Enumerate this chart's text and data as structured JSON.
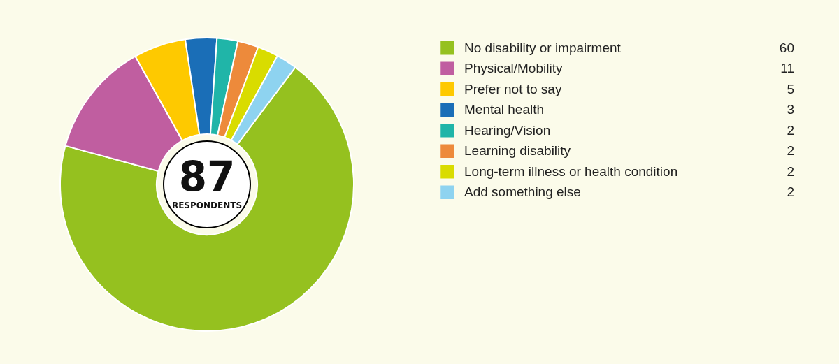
{
  "chart_data": {
    "type": "donut",
    "categories": [
      "No disability or impairment",
      "Physical/Mobility",
      "Prefer not to say",
      "Mental health",
      "Hearing/Vision",
      "Learning disability",
      "Long-term illness or health condition",
      "Add something else"
    ],
    "values": [
      60,
      11,
      5,
      3,
      2,
      2,
      2,
      2
    ],
    "colors": [
      "#95c11f",
      "#c05ea0",
      "#fec900",
      "#1a6eb7",
      "#20b5a8",
      "#ed8a3b",
      "#d9dc00",
      "#8ed3f0"
    ],
    "annotations": [
      "87",
      "RESPONDENTS"
    ],
    "data_labels": true,
    "legend": "right"
  }
}
